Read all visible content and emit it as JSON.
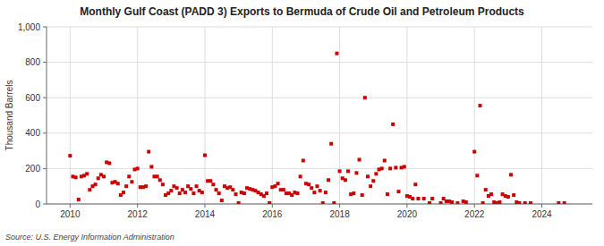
{
  "chart_data": {
    "type": "scatter",
    "title": "Monthly Gulf Coast (PADD 3) Exports to Bermuda of Crude Oil and Petroleum Products",
    "ylabel": "Thousand Barrels",
    "source": "Source: U.S. Energy Information Administration",
    "color": "#cc0000",
    "marker": "square",
    "grid": true,
    "xlim": [
      2009.3,
      2025.5
    ],
    "xticks": [
      2010,
      2012,
      2014,
      2016,
      2018,
      2020,
      2022,
      2024
    ],
    "ylim": [
      0,
      1000
    ],
    "yticks": [
      0,
      200,
      400,
      600,
      800,
      {
        "value": 1000,
        "label": "1,000"
      }
    ],
    "x": [
      2010.0,
      2010.083,
      2010.167,
      2010.25,
      2010.333,
      2010.417,
      2010.5,
      2010.583,
      2010.667,
      2010.75,
      2010.833,
      2010.917,
      2011.0,
      2011.083,
      2011.167,
      2011.25,
      2011.333,
      2011.417,
      2011.5,
      2011.583,
      2011.667,
      2011.75,
      2011.833,
      2011.917,
      2012.0,
      2012.083,
      2012.167,
      2012.25,
      2012.333,
      2012.417,
      2012.5,
      2012.583,
      2012.667,
      2012.75,
      2012.833,
      2012.917,
      2013.0,
      2013.083,
      2013.167,
      2013.25,
      2013.333,
      2013.417,
      2013.5,
      2013.583,
      2013.667,
      2013.75,
      2013.833,
      2013.917,
      2014.0,
      2014.083,
      2014.167,
      2014.25,
      2014.333,
      2014.417,
      2014.5,
      2014.583,
      2014.667,
      2014.75,
      2014.833,
      2014.917,
      2015.0,
      2015.083,
      2015.167,
      2015.25,
      2015.333,
      2015.417,
      2015.5,
      2015.583,
      2015.667,
      2015.75,
      2015.833,
      2015.917,
      2016.0,
      2016.083,
      2016.167,
      2016.25,
      2016.333,
      2016.417,
      2016.5,
      2016.583,
      2016.667,
      2016.75,
      2016.833,
      2016.917,
      2017.0,
      2017.083,
      2017.167,
      2017.25,
      2017.333,
      2017.417,
      2017.5,
      2017.583,
      2017.667,
      2017.75,
      2017.833,
      2017.917,
      2018.0,
      2018.083,
      2018.167,
      2018.25,
      2018.333,
      2018.417,
      2018.5,
      2018.583,
      2018.667,
      2018.75,
      2018.833,
      2018.917,
      2019.0,
      2019.083,
      2019.167,
      2019.25,
      2019.333,
      2019.417,
      2019.5,
      2019.583,
      2019.667,
      2019.75,
      2019.833,
      2019.917,
      2020.0,
      2020.083,
      2020.167,
      2020.25,
      2020.333,
      2020.5,
      2020.667,
      2020.75,
      2021.0,
      2021.083,
      2021.167,
      2021.25,
      2021.333,
      2021.5,
      2021.667,
      2021.75,
      2022.0,
      2022.083,
      2022.167,
      2022.25,
      2022.333,
      2022.417,
      2022.5,
      2022.583,
      2022.667,
      2022.75,
      2022.833,
      2022.917,
      2023.0,
      2023.083,
      2023.167,
      2023.25,
      2023.333,
      2023.5,
      2023.667,
      2024.5,
      2024.667
    ],
    "values": [
      272,
      155,
      150,
      25,
      155,
      160,
      170,
      80,
      100,
      110,
      145,
      165,
      155,
      235,
      230,
      120,
      125,
      115,
      50,
      65,
      100,
      155,
      125,
      195,
      200,
      95,
      95,
      100,
      295,
      210,
      155,
      155,
      135,
      110,
      50,
      60,
      75,
      100,
      90,
      60,
      80,
      65,
      100,
      85,
      60,
      100,
      75,
      65,
      275,
      130,
      130,
      110,
      80,
      60,
      20,
      100,
      90,
      95,
      80,
      55,
      5,
      65,
      60,
      90,
      85,
      80,
      75,
      65,
      55,
      45,
      60,
      5,
      95,
      100,
      115,
      80,
      80,
      60,
      60,
      50,
      65,
      60,
      155,
      245,
      115,
      110,
      90,
      65,
      100,
      75,
      5,
      65,
      135,
      340,
      5,
      850,
      185,
      145,
      135,
      185,
      55,
      60,
      175,
      250,
      50,
      600,
      155,
      100,
      130,
      170,
      195,
      200,
      245,
      55,
      200,
      450,
      205,
      70,
      205,
      210,
      45,
      40,
      30,
      110,
      30,
      30,
      5,
      30,
      5,
      30,
      15,
      15,
      10,
      5,
      15,
      10,
      295,
      160,
      555,
      5,
      80,
      45,
      55,
      10,
      5,
      10,
      55,
      45,
      40,
      165,
      50,
      10,
      5,
      5,
      5,
      5,
      5
    ]
  }
}
